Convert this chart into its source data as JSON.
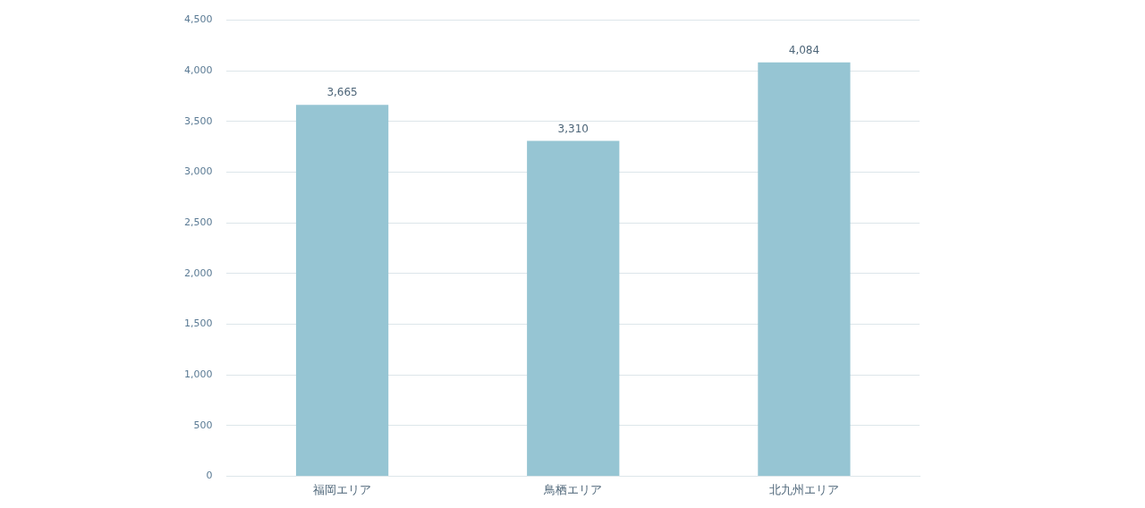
{
  "chart_data": {
    "type": "bar",
    "categories": [
      "福岡エリア",
      "鳥栖エリア",
      "北九州エリア"
    ],
    "values": [
      3665,
      3310,
      4084
    ],
    "color": "#96c5d3",
    "ylim": [
      0,
      4500
    ],
    "yticks": [
      0,
      {
        "value": 500,
        "label": "500"
      },
      {
        "value": 1000,
        "label": "1,000"
      },
      {
        "value": 1500,
        "label": "1,500"
      },
      {
        "value": 2000,
        "label": "2,000"
      },
      {
        "value": 2500,
        "label": "2,500"
      },
      {
        "value": 3000,
        "label": "3,000"
      },
      {
        "value": 3500,
        "label": "3,500"
      },
      {
        "value": 4000,
        "label": "4,000"
      },
      {
        "value": 4500,
        "label": "4,500"
      }
    ],
    "value_labels": [
      "3,665",
      "3,310",
      "4,084"
    ],
    "grid": "y"
  }
}
